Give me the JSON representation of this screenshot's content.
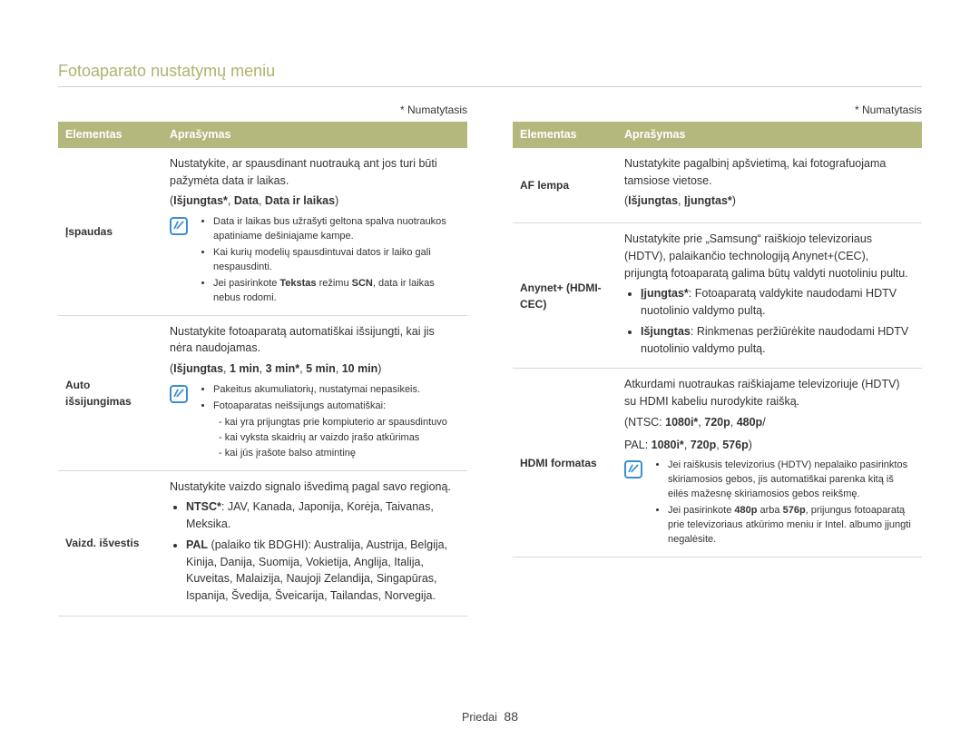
{
  "page": {
    "title": "Fotoaparato nustatymų meniu",
    "default_label": "* Numatytasis",
    "footer_label": "Priedai",
    "footer_page": "88"
  },
  "colors": {
    "title_color": "#b0b36f",
    "header_bg": "#b4b87d",
    "header_text": "#ffffff",
    "note_icon": "#3a8ed0",
    "border": "#d8d8d8",
    "background": "#ffffff"
  },
  "table_headers": {
    "element": "Elementas",
    "description": "Aprašymas"
  },
  "left_table": [
    {
      "element": "Įspaudas",
      "desc": "Nustatykite, ar spausdinant nuotrauką ant jos turi būti pažymėta data ir laikas.",
      "options_html": "(<b>Išjungtas*</b>, <b>Data</b>, <b>Data ir laikas</b>)",
      "note_items": [
        "Data ir laikas bus užrašyti geltona spalva nuotraukos apatiniame dešiniajame kampe.",
        "Kai kurių modelių spausdintuvai datos ir laiko gali nespausdinti.",
        "Jei pasirinkote <b>Tekstas</b> režimu <b>SCN</b>, data ir laikas nebus rodomi."
      ]
    },
    {
      "element": "Auto išsijungimas",
      "desc": "Nustatykite fotoaparatą automatiškai išsijungti, kai jis nėra naudojamas.",
      "options_html": "(<b>Išjungtas</b>, <b>1 min</b>, <b>3 min*</b>, <b>5 min</b>, <b>10 min</b>)",
      "note_items": [
        "Pakeitus akumuliatorių, nustatymai nepasikeis.",
        "Fotoaparatas neišsijungs automatiškai:"
      ],
      "note_sub_dash": [
        "kai yra prijungtas prie kompiuterio ar spausdintuvo",
        "kai vyksta skaidrių ar vaizdo įrašo atkūrimas",
        "kai jūs įrašote balso atmintinę"
      ]
    },
    {
      "element": "Vaizd. išvestis",
      "desc": "Nustatykite vaizdo signalo išvedimą pagal savo regioną.",
      "big_items": [
        "<b>NTSC*</b>: JAV, Kanada, Japonija, Korėja, Taivanas, Meksika.",
        "<b>PAL</b> (palaiko tik BDGHI): Australija, Austrija, Belgija, Kinija, Danija, Suomija, Vokietija, Anglija, Italija, Kuveitas, Malaizija, Naujoji Zelandija, Singapūras, Ispanija, Švedija, Šveicarija, Tailandas, Norvegija."
      ]
    }
  ],
  "right_table": [
    {
      "element": "AF lempa",
      "desc": "Nustatykite pagalbinį apšvietimą, kai fotografuojama tamsiose vietose.",
      "options_html": "(<b>Išjungtas</b>, <b>Įjungtas*</b>)"
    },
    {
      "element": "Anynet+ (HDMI-CEC)",
      "desc": "Nustatykite prie „Samsung“ raiškiojo televizoriaus (HDTV), palaikančio technologiją Anynet+(CEC), prijungtą fotoaparatą galima būtų valdyti nuotoliniu pultu.",
      "big_items": [
        "<b>Įjungtas*</b>: Fotoaparatą valdykite naudodami HDTV nuotolinio valdymo pultą.",
        "<b>Išjungtas</b>: Rinkmenas peržiūrėkite naudodami HDTV nuotolinio valdymo pultą."
      ]
    },
    {
      "element": "HDMI formatas",
      "desc": "Atkurdami nuotraukas raiškiajame televizoriuje (HDTV) su HDMI kabeliu nurodykite raišką.",
      "options_lines": [
        "(NTSC: <b>1080i*</b>, <b>720p</b>, <b>480p</b>/",
        "PAL: <b>1080i*</b>, <b>720p</b>, <b>576p</b>)"
      ],
      "note_items": [
        "Jei raiškusis televizorius (HDTV) nepalaiko pasirinktos skiriamosios gebos, jis automatiškai parenka kitą iš eilės mažesnę skiriamosios gebos reikšmę.",
        "Jei pasirinkote <b>480p</b> arba <b>576p</b>, prijungus fotoaparatą prie televizoriaus atkūrimo meniu ir Intel. albumo įjungti negalėsite."
      ]
    }
  ]
}
